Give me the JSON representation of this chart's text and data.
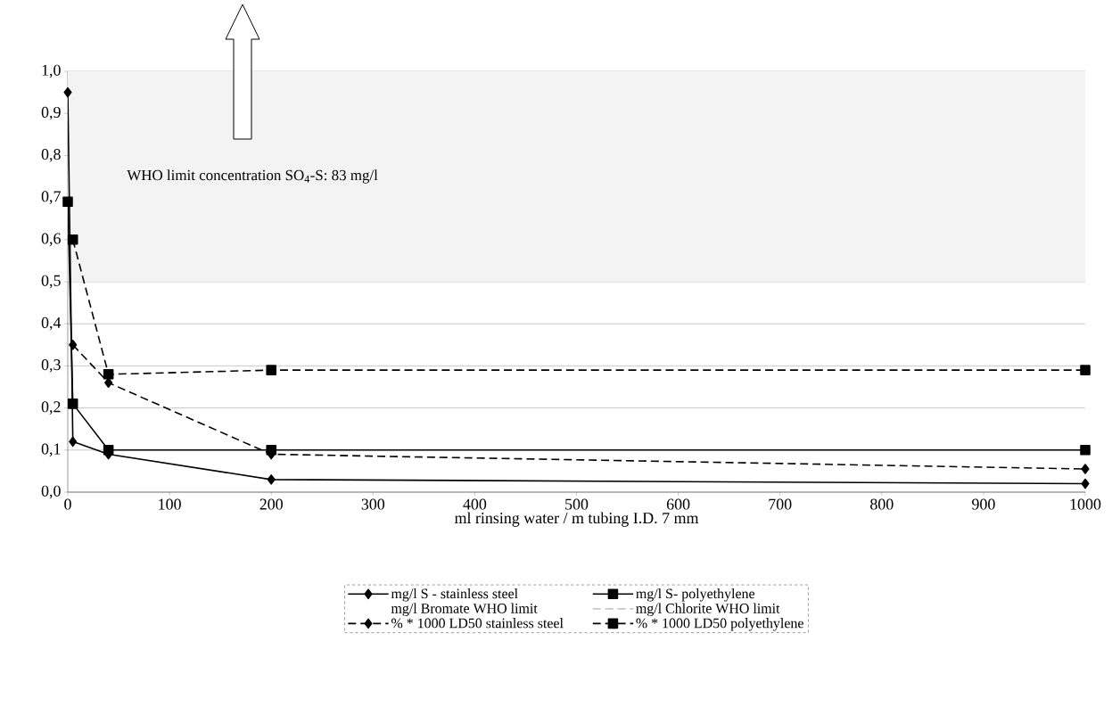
{
  "chart_data": {
    "type": "line",
    "xlabel": "ml rinsing water / m tubing I.D. 7 mm",
    "annotations": [
      "WHO limit concentration SO$_{4}$-S: 83 mg/l"
    ],
    "x": [
      0,
      5,
      40,
      200,
      1000
    ],
    "series": [
      {
        "name": "mg/l S - stainless steel",
        "color": "#000000",
        "marker": "diamond",
        "line_style": "solid",
        "values": [
          0.95,
          0.12,
          0.09,
          0.03,
          0.02
        ]
      },
      {
        "name": "mg/l S- polyethylene",
        "color": "#000000",
        "marker": "square",
        "line_style": "solid",
        "values": [
          0.69,
          0.21,
          0.1,
          0.1,
          0.1
        ]
      },
      {
        "name": "mg/l Bromate WHO limit",
        "marker": "none",
        "line_style": "solid",
        "values": [
          null,
          null,
          null,
          null,
          null
        ]
      },
      {
        "name": "mg/l Chlorite WHO limit",
        "color": "#c8c8c8",
        "marker": "none",
        "line_style": "dashed",
        "values": [
          null,
          null,
          null,
          null,
          null
        ]
      },
      {
        "name": "% * 1000 LD50 stainless steel",
        "color": "#000000",
        "marker": "diamond",
        "line_style": "dashed",
        "values": [
          null,
          0.35,
          0.26,
          0.09,
          0.055
        ]
      },
      {
        "name": "% * 1000 LD50 polyethylene",
        "color": "#000000",
        "marker": "square",
        "line_style": "dashed",
        "values": [
          null,
          0.6,
          0.28,
          0.29,
          0.29
        ]
      }
    ],
    "xlim": [
      0,
      1000
    ],
    "ylim": [
      0,
      1.0
    ],
    "xticks": [
      0,
      100,
      200,
      300,
      400,
      500,
      600,
      700,
      800,
      900,
      1000
    ],
    "yticks": [
      {
        "value": 0,
        "label": "0,0"
      },
      {
        "value": 0.1,
        "label": "0,1"
      },
      {
        "value": 0.2,
        "label": "0,2"
      },
      {
        "value": 0.3,
        "label": "0,3"
      },
      {
        "value": 0.4,
        "label": "0,4"
      },
      {
        "value": 0.5,
        "label": "0,5"
      },
      {
        "value": 0.6,
        "label": "0,6"
      },
      {
        "value": 0.7,
        "label": "0,7"
      },
      {
        "value": 0.8,
        "label": "0,8"
      },
      {
        "value": 0.9,
        "label": "0,9"
      },
      {
        "value": 1.0,
        "label": "1,0"
      }
    ],
    "bands": [
      {
        "axis": "y",
        "from": 0.5,
        "to": 1.0,
        "color": "#f3f3f3"
      }
    ],
    "grid": "y",
    "legend": "bottom"
  }
}
